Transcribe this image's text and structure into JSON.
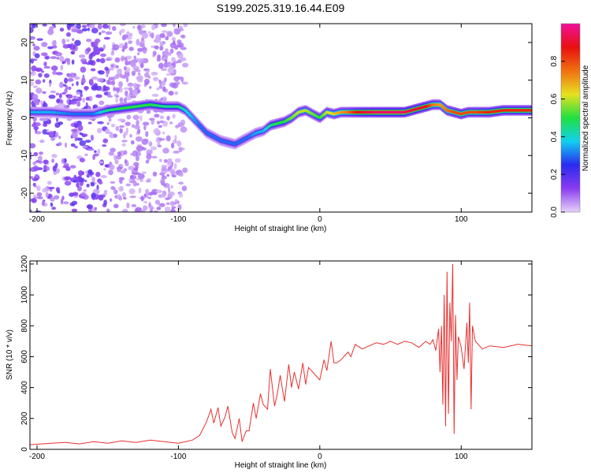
{
  "title": "S199.2025.319.16.44.E09",
  "chart_data": [
    {
      "type": "heatmap",
      "xlabel": "Height of straight line (km)",
      "ylabel": "Frequency (Hz)",
      "xlim": [
        -205,
        150
      ],
      "ylim": [
        -25,
        25
      ],
      "xticks": [
        -200,
        -100,
        0,
        100
      ],
      "yticks": [
        -20,
        -10,
        0,
        10,
        20
      ],
      "colorbar": {
        "label": "Normalized spectral amplitude",
        "range": [
          0,
          1
        ],
        "ticks": [
          "0.0",
          "0.2",
          "0.4",
          "0.6",
          "0.8"
        ],
        "tick_values": [
          0,
          0.2,
          0.4,
          0.6,
          0.8
        ],
        "colors": [
          "#e6d2fa",
          "#8a3cf0",
          "#2a2af0",
          "#10d0f0",
          "#20e040",
          "#e8e020",
          "#f07010",
          "#e81010",
          "#f0109a"
        ]
      },
      "ridge": {
        "x": [
          -205,
          -190,
          -175,
          -160,
          -150,
          -140,
          -130,
          -120,
          -110,
          -100,
          -95,
          -90,
          -85,
          -80,
          -75,
          -70,
          -65,
          -60,
          -55,
          -50,
          -45,
          -40,
          -35,
          -30,
          -25,
          -20,
          -15,
          -10,
          -5,
          0,
          5,
          10,
          15,
          20,
          25,
          30,
          40,
          50,
          60,
          70,
          75,
          80,
          85,
          90,
          95,
          100,
          105,
          110,
          120,
          130,
          140,
          150
        ],
        "freq": [
          1.5,
          1.5,
          1.0,
          1.0,
          2.0,
          2.5,
          3.0,
          3.5,
          3.0,
          3.0,
          2.0,
          0.0,
          -2.0,
          -4.0,
          -5.0,
          -6.0,
          -6.5,
          -7.0,
          -6.0,
          -5.0,
          -4.0,
          -3.5,
          -2.0,
          -1.5,
          -1.0,
          0.0,
          1.5,
          2.0,
          1.0,
          0.0,
          1.5,
          1.0,
          1.5,
          1.5,
          1.5,
          1.5,
          1.5,
          1.5,
          1.5,
          2.5,
          3.0,
          3.5,
          3.5,
          2.0,
          1.5,
          1.0,
          1.5,
          1.5,
          1.5,
          2.0,
          2.0,
          2.0
        ],
        "amplitude": [
          0.35,
          0.35,
          0.3,
          0.3,
          0.45,
          0.5,
          0.5,
          0.5,
          0.45,
          0.45,
          0.4,
          0.35,
          0.3,
          0.3,
          0.3,
          0.3,
          0.3,
          0.3,
          0.3,
          0.3,
          0.35,
          0.35,
          0.45,
          0.5,
          0.5,
          0.55,
          0.6,
          0.6,
          0.55,
          0.5,
          0.6,
          0.65,
          0.7,
          0.75,
          0.85,
          0.9,
          0.95,
          0.95,
          0.95,
          0.9,
          0.9,
          0.75,
          0.7,
          0.75,
          0.8,
          0.8,
          0.8,
          0.8,
          0.85,
          0.85,
          0.85,
          0.85
        ]
      },
      "noise_region_x": [
        -205,
        -95
      ]
    },
    {
      "type": "line",
      "xlabel": "Height of straight line (km)",
      "ylabel": "SNR (10 * v/v)",
      "xlim": [
        -205,
        150
      ],
      "ylim": [
        0,
        1220
      ],
      "xticks": [
        -200,
        -100,
        0,
        100
      ],
      "yticks": [
        0,
        200,
        400,
        600,
        800,
        1000,
        1200
      ],
      "color": "#e83030",
      "x": [
        -205,
        -190,
        -180,
        -170,
        -160,
        -150,
        -140,
        -130,
        -120,
        -110,
        -100,
        -95,
        -90,
        -85,
        -80,
        -77,
        -75,
        -72,
        -70,
        -67,
        -65,
        -62,
        -60,
        -57,
        -55,
        -52,
        -50,
        -47,
        -45,
        -42,
        -40,
        -37,
        -35,
        -32,
        -30,
        -28,
        -25,
        -22,
        -20,
        -18,
        -15,
        -12,
        -10,
        -8,
        -5,
        -3,
        0,
        3,
        5,
        8,
        10,
        12,
        15,
        18,
        20,
        22,
        25,
        30,
        35,
        40,
        45,
        50,
        55,
        60,
        65,
        70,
        75,
        78,
        80,
        82,
        84,
        85,
        86,
        87,
        88,
        89,
        90,
        91,
        92,
        93,
        94,
        95,
        96,
        97,
        98,
        100,
        102,
        104,
        105,
        106,
        107,
        108,
        110,
        115,
        120,
        130,
        140,
        150
      ],
      "y": [
        30,
        40,
        45,
        35,
        50,
        40,
        55,
        45,
        60,
        50,
        40,
        50,
        60,
        90,
        180,
        260,
        170,
        270,
        150,
        210,
        280,
        110,
        70,
        200,
        50,
        120,
        120,
        300,
        200,
        360,
        290,
        260,
        520,
        280,
        360,
        480,
        310,
        550,
        400,
        500,
        390,
        560,
        420,
        530,
        500,
        480,
        450,
        580,
        510,
        700,
        560,
        560,
        580,
        610,
        630,
        600,
        680,
        650,
        670,
        690,
        680,
        700,
        680,
        700,
        690,
        660,
        700,
        680,
        710,
        640,
        780,
        500,
        800,
        290,
        1000,
        150,
        1150,
        230,
        950,
        700,
        1200,
        100,
        870,
        450,
        730,
        660,
        520,
        820,
        560,
        950,
        260,
        800,
        700,
        650,
        670,
        660,
        680,
        670
      ]
    }
  ]
}
